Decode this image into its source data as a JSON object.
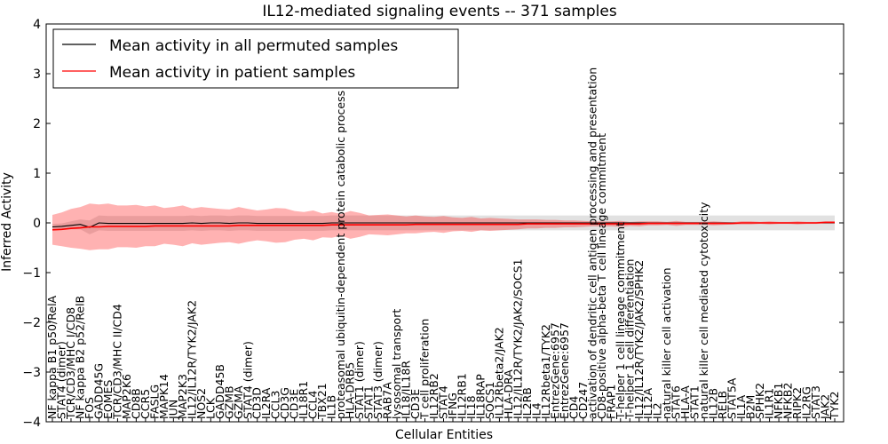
{
  "chart_data": {
    "type": "line",
    "title": "IL12-mediated signaling events -- 371 samples",
    "xlabel": "Cellular Entities",
    "ylabel": "Inferred Activity",
    "ylim": [
      -4,
      4
    ],
    "yticks": [
      -4,
      -3,
      -2,
      -1,
      0,
      1,
      2,
      3,
      4
    ],
    "grid": false,
    "legend_position": "top-left",
    "categories": [
      "NF kappa B1 p50/RelA",
      "STAT4 (dimer)",
      "TCR/CD3/MHC I/CD8",
      "NF kappa B2 p52/RelB",
      "FOS",
      "GADD45G",
      "EOMES",
      "TCR/CD3/MHC II/CD4",
      "MAP2K6",
      "CD8B",
      "CCR5",
      "FASLG",
      "MAPK14",
      "JUN",
      "MAP2K3",
      "IL12/IL12R/TYK2/JAK2",
      "NOS2",
      "LCK",
      "GADD45B",
      "GZMB",
      "GZMA",
      "STAT4 (dimer)",
      "CD3D",
      "IL2RA",
      "CCL3",
      "CD3G",
      "CD3E",
      "IL18R1",
      "CCL4",
      "TBX21",
      "IL1B",
      "proteasomal ubiquitin-dependent protein catabolic process",
      "HLA-DRB5",
      "STAT1 (dimer)",
      "STAT1",
      "STAT3 (dimer)",
      "RAB7A",
      "lysosomal transport",
      "IL18/IL18R",
      "CD3E",
      "T cell proliferation",
      "IL12RB2",
      "STAT4",
      "IFNG",
      "IL12RB1",
      "IL18",
      "IL18RAP",
      "SOCS1",
      "IL12Rbeta2/JAK2",
      "HLA-DRA",
      "IL12/IL12R/TYK2/JAK2/SOCS1",
      "IL2RB",
      "IL4",
      "IL12Rbeta1/TYK2",
      "EntrezGene:6957",
      "EntrezGene:6957",
      "CD4",
      "CD247",
      "activation of dendritic cell antigen processing and presentation",
      "CD8-positive alpha-beta T cell lineage commitment",
      "FRAP1",
      "T-helper 1 cell lineage commitment",
      "T-helper 1 cell differentiation",
      "IL12/IL12R/TYK2/JAK2/SPHK2",
      "IL12A",
      "IL2",
      "natural killer cell activation",
      "STAT6",
      "HLA-A",
      "STAT1",
      "natural killer cell mediated cytotoxicity",
      "IL12B",
      "RELB",
      "STAT5A",
      "IL1A",
      "B2M",
      "SPHK2",
      "IL1R1",
      "NFKB1",
      "NFKB2",
      "RIPK2",
      "IL2RG",
      "STAT3",
      "JAK2",
      "TYK2"
    ],
    "series": [
      {
        "name": "Mean activity in all permuted samples",
        "color": "#000000",
        "values": [
          -0.08,
          -0.07,
          -0.05,
          -0.03,
          -0.09,
          0.0,
          -0.01,
          -0.01,
          -0.01,
          -0.01,
          -0.01,
          -0.01,
          -0.01,
          -0.01,
          -0.01,
          0.0,
          -0.01,
          0.0,
          0.0,
          -0.01,
          0.0,
          0.0,
          -0.01,
          -0.01,
          -0.01,
          -0.01,
          -0.01,
          -0.01,
          -0.01,
          -0.01,
          0.0,
          0.0,
          0.0,
          0.0,
          0.0,
          0.0,
          0.0,
          0.0,
          0.0,
          0.0,
          0.0,
          0.0,
          0.0,
          0.0,
          0.0,
          0.0,
          0.0,
          0.0,
          0.0,
          0.0,
          0.0,
          0.0,
          0.0,
          0.0,
          0.0,
          0.0,
          0.0,
          0.0,
          0.0,
          0.0,
          0.0,
          0.0,
          0.0,
          0.0,
          0.0,
          0.0,
          0.0,
          0.0,
          0.0,
          0.0,
          0.0,
          0.0,
          0.0,
          0.0,
          0.0,
          0.0,
          0.0,
          0.0,
          0.0,
          0.0,
          0.0,
          0.0,
          0.0,
          0.0,
          0.0
        ],
        "std": [
          0.06,
          0.06,
          0.08,
          0.1,
          0.14,
          0.15,
          0.15,
          0.15,
          0.15,
          0.15,
          0.15,
          0.15,
          0.15,
          0.15,
          0.15,
          0.15,
          0.15,
          0.15,
          0.15,
          0.15,
          0.15,
          0.15,
          0.15,
          0.15,
          0.15,
          0.15,
          0.15,
          0.15,
          0.15,
          0.15,
          0.15,
          0.15,
          0.15,
          0.15,
          0.15,
          0.15,
          0.15,
          0.15,
          0.15,
          0.15,
          0.15,
          0.15,
          0.15,
          0.15,
          0.15,
          0.15,
          0.15,
          0.15,
          0.15,
          0.15,
          0.15,
          0.15,
          0.15,
          0.15,
          0.15,
          0.15,
          0.15,
          0.15,
          0.15,
          0.15,
          0.15,
          0.15,
          0.15,
          0.15,
          0.15,
          0.15,
          0.15,
          0.15,
          0.15,
          0.15,
          0.15,
          0.15,
          0.15,
          0.15,
          0.15,
          0.15,
          0.15,
          0.15,
          0.15,
          0.15,
          0.15,
          0.15,
          0.15,
          0.15,
          0.15
        ]
      },
      {
        "name": "Mean activity in patient samples",
        "color": "#ff0000",
        "values": [
          -0.14,
          -0.13,
          -0.11,
          -0.1,
          -0.08,
          -0.08,
          -0.07,
          -0.07,
          -0.07,
          -0.07,
          -0.07,
          -0.06,
          -0.06,
          -0.06,
          -0.06,
          -0.06,
          -0.06,
          -0.06,
          -0.06,
          -0.06,
          -0.05,
          -0.05,
          -0.05,
          -0.05,
          -0.05,
          -0.05,
          -0.05,
          -0.05,
          -0.05,
          -0.05,
          -0.04,
          -0.04,
          -0.04,
          -0.04,
          -0.04,
          -0.04,
          -0.04,
          -0.04,
          -0.04,
          -0.03,
          -0.03,
          -0.03,
          -0.03,
          -0.03,
          -0.03,
          -0.03,
          -0.03,
          -0.03,
          -0.03,
          -0.03,
          -0.03,
          -0.02,
          -0.02,
          -0.02,
          -0.02,
          -0.02,
          -0.02,
          -0.02,
          -0.02,
          -0.02,
          -0.02,
          -0.02,
          -0.02,
          -0.02,
          -0.01,
          -0.01,
          -0.01,
          -0.01,
          -0.01,
          -0.01,
          -0.01,
          -0.01,
          -0.01,
          -0.01,
          0.0,
          0.0,
          0.0,
          0.0,
          0.0,
          0.0,
          0.0,
          0.0,
          0.0,
          0.01,
          0.01
        ],
        "std": [
          0.3,
          0.34,
          0.39,
          0.42,
          0.47,
          0.45,
          0.46,
          0.42,
          0.42,
          0.43,
          0.4,
          0.41,
          0.36,
          0.38,
          0.41,
          0.35,
          0.38,
          0.36,
          0.34,
          0.33,
          0.37,
          0.33,
          0.3,
          0.32,
          0.35,
          0.34,
          0.29,
          0.27,
          0.3,
          0.24,
          0.26,
          0.22,
          0.28,
          0.24,
          0.19,
          0.2,
          0.21,
          0.19,
          0.17,
          0.18,
          0.16,
          0.15,
          0.17,
          0.14,
          0.13,
          0.15,
          0.12,
          0.13,
          0.12,
          0.11,
          0.1,
          0.09,
          0.09,
          0.08,
          0.08,
          0.07,
          0.07,
          0.06,
          0.05,
          0.05,
          0.05,
          0.06,
          0.04,
          0.05,
          0.04,
          0.04,
          0.03,
          0.05,
          0.03,
          0.03,
          0.03,
          0.04,
          0.03,
          0.02,
          0.03,
          0.03,
          0.02,
          0.03,
          0.02,
          0.02,
          0.03,
          0.02,
          0.02,
          0.02,
          0.02
        ]
      }
    ]
  }
}
